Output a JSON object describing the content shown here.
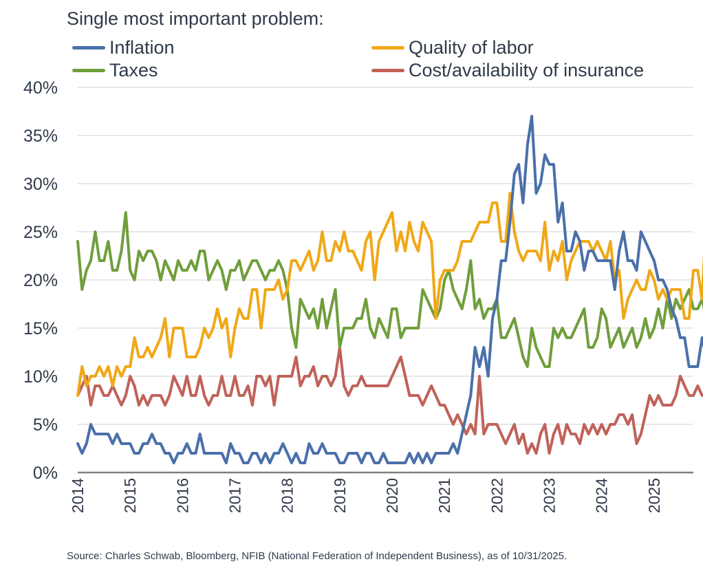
{
  "chart_data": {
    "type": "line",
    "legend_title": "Single most important problem:",
    "legend_placement": "top",
    "x_start": "2014-01",
    "x_end": "2025-10",
    "x_ticks": [
      "2014",
      "2015",
      "2016",
      "2017",
      "2018",
      "2019",
      "2020",
      "2021",
      "2022",
      "2023",
      "2024",
      "2025"
    ],
    "y_ticks": [
      "0%",
      "5%",
      "10%",
      "15%",
      "20%",
      "25%",
      "30%",
      "35%",
      "40%"
    ],
    "ylim": [
      0,
      40
    ],
    "grid": "horizontal",
    "series": [
      {
        "name": "Inflation",
        "color": "#4a70aa",
        "values": [
          3,
          2,
          3,
          5,
          4,
          4,
          4,
          4,
          3,
          4,
          3,
          3,
          3,
          2,
          2,
          3,
          3,
          4,
          3,
          3,
          2,
          2,
          1,
          2,
          2,
          3,
          2,
          2,
          4,
          2,
          2,
          2,
          2,
          2,
          1,
          3,
          2,
          2,
          1,
          1,
          2,
          2,
          1,
          2,
          1,
          2,
          2,
          3,
          2,
          1,
          2,
          1,
          1,
          3,
          2,
          2,
          3,
          2,
          2,
          2,
          1,
          1,
          2,
          2,
          2,
          1,
          2,
          2,
          1,
          1,
          2,
          1,
          1,
          1,
          1,
          1,
          2,
          1,
          2,
          1,
          2,
          1,
          2,
          2,
          2,
          2,
          3,
          2,
          4,
          6,
          8,
          13,
          11,
          13,
          10,
          16,
          18,
          22,
          22,
          26,
          31,
          32,
          28,
          34,
          37,
          29,
          30,
          33,
          32,
          32,
          26,
          28,
          23,
          23,
          25,
          24,
          21,
          23,
          23,
          22,
          22,
          22,
          22,
          19,
          23,
          25,
          22,
          22,
          21,
          25,
          24,
          23,
          22,
          20,
          20,
          19,
          17,
          16,
          14,
          14,
          11,
          11,
          11,
          14,
          12
        ]
      },
      {
        "name": "Quality of labor",
        "color": "#f0a818",
        "values": [
          8,
          11,
          9,
          10,
          10,
          11,
          10,
          11,
          9,
          11,
          10,
          11,
          11,
          14,
          12,
          12,
          13,
          12,
          13,
          14,
          16,
          12,
          15,
          15,
          15,
          12,
          12,
          12,
          13,
          15,
          14,
          15,
          17,
          15,
          16,
          12,
          15,
          17,
          16,
          16,
          19,
          19,
          15,
          19,
          19,
          19,
          20,
          18,
          19,
          22,
          22,
          21,
          22,
          23,
          21,
          22,
          25,
          22,
          22,
          24,
          23,
          25,
          23,
          23,
          22,
          21,
          24,
          25,
          20,
          24,
          25,
          26,
          27,
          23,
          25,
          23,
          26,
          24,
          23,
          26,
          25,
          24,
          16,
          20,
          21,
          21,
          21,
          22,
          24,
          24,
          24,
          25,
          26,
          26,
          26,
          28,
          28,
          24,
          24,
          29,
          25,
          23,
          22,
          23,
          23,
          23,
          22,
          26,
          21,
          23,
          22,
          24,
          20,
          22,
          23,
          24,
          24,
          24,
          23,
          24,
          23,
          22,
          24,
          20,
          21,
          16,
          18,
          19,
          20,
          19,
          19,
          21,
          20,
          18,
          19,
          18,
          19,
          19,
          19,
          16,
          16,
          21,
          21,
          18,
          27
        ]
      },
      {
        "name": "Taxes",
        "color": "#709e3c",
        "values": [
          24,
          19,
          21,
          22,
          25,
          22,
          22,
          24,
          21,
          21,
          23,
          27,
          21,
          20,
          23,
          22,
          23,
          23,
          22,
          20,
          22,
          21,
          20,
          22,
          21,
          21,
          22,
          21,
          23,
          23,
          20,
          21,
          22,
          21,
          19,
          21,
          21,
          22,
          20,
          21,
          22,
          22,
          21,
          20,
          21,
          21,
          22,
          21,
          19,
          15,
          13,
          18,
          17,
          16,
          17,
          15,
          18,
          15,
          17,
          19,
          13,
          15,
          15,
          15,
          16,
          16,
          18,
          15,
          14,
          16,
          15,
          14,
          17,
          17,
          14,
          15,
          15,
          15,
          15,
          19,
          18,
          17,
          16,
          17,
          20,
          21,
          19,
          18,
          17,
          19,
          22,
          17,
          18,
          16,
          17,
          17,
          18,
          14,
          14,
          15,
          16,
          14,
          12,
          11,
          15,
          13,
          12,
          11,
          11,
          15,
          14,
          15,
          14,
          14,
          15,
          16,
          17,
          13,
          13,
          14,
          17,
          16,
          13,
          14,
          15,
          13,
          14,
          15,
          13,
          14,
          16,
          14,
          15,
          17,
          15,
          18,
          16,
          18,
          17,
          18,
          19,
          17,
          17,
          18,
          16
        ]
      },
      {
        "name": "Cost/availability of insurance",
        "color": "#c0625a",
        "values": [
          8,
          9,
          10,
          7,
          9,
          9,
          8,
          8,
          9,
          8,
          7,
          8,
          10,
          9,
          7,
          8,
          7,
          8,
          8,
          8,
          7,
          8,
          10,
          9,
          8,
          10,
          8,
          8,
          10,
          8,
          7,
          8,
          8,
          10,
          8,
          8,
          10,
          8,
          8,
          9,
          7,
          10,
          10,
          9,
          10,
          7,
          10,
          10,
          10,
          10,
          12,
          9,
          10,
          10,
          11,
          9,
          10,
          10,
          9,
          10,
          13,
          9,
          8,
          9,
          9,
          10,
          9,
          9,
          9,
          9,
          9,
          9,
          10,
          11,
          12,
          10,
          8,
          8,
          8,
          7,
          8,
          9,
          8,
          7,
          7,
          6,
          5,
          6,
          5,
          4,
          5,
          4,
          10,
          4,
          5,
          5,
          5,
          4,
          3,
          4,
          5,
          3,
          4,
          2,
          3,
          2,
          4,
          5,
          2,
          4,
          5,
          3,
          5,
          4,
          4,
          3,
          5,
          4,
          5,
          4,
          5,
          4,
          5,
          5,
          6,
          6,
          5,
          6,
          3,
          4,
          6,
          8,
          7,
          8,
          7,
          7,
          7,
          8,
          10,
          9,
          8,
          8,
          9,
          8,
          8
        ]
      }
    ],
    "source": "Source: Charles Schwab, Bloomberg, NFIB (National Federation of Independent Business), as of 10/31/2025."
  }
}
